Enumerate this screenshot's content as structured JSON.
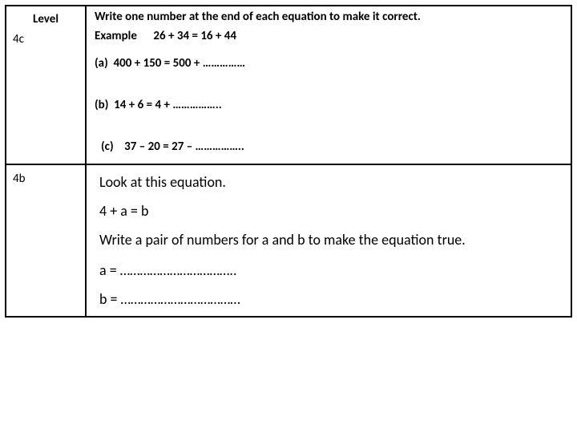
{
  "header": {
    "level_col": "Level",
    "instruction": "Write one number at the end of each equation to make it correct."
  },
  "section4c": {
    "level": "4c",
    "example_label": "Example",
    "example_eq": "26 + 34 = 16 + 44",
    "a": "(a)  400 + 150 = 500 + ……………",
    "b": "(b)  14 + 6 = 4 + ……………..",
    "c": "(c)    37 – 20 = 27 – …………….."
  },
  "section4b": {
    "level": "4b",
    "line1": "Look at this equation.",
    "line2": "4 + a = b",
    "line3": "Write a pair of numbers for a and b to make the equation true.",
    "a_blank": "a = ……………………………..",
    "b_blank": "b = ………………………………"
  },
  "colors": {
    "text": "#000000",
    "border": "#000000",
    "background": "#ffffff"
  },
  "fonts": {
    "bold_size": 15,
    "body_size": 18
  }
}
